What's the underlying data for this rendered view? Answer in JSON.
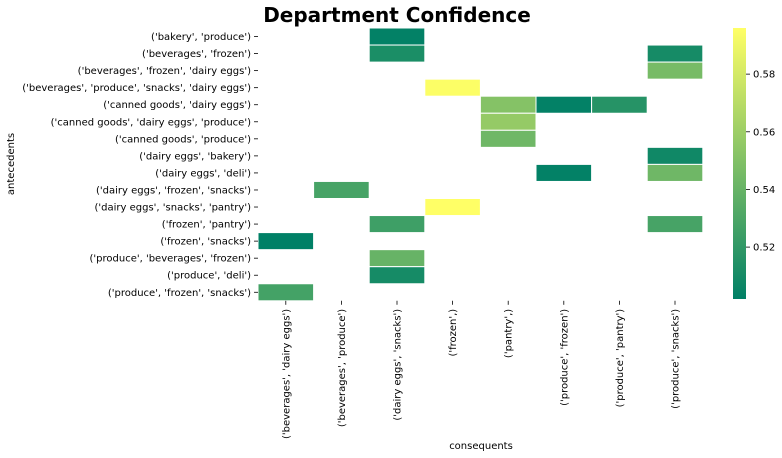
{
  "chart_data": {
    "type": "heatmap",
    "title": "Department Confidence",
    "xlabel": "consequents",
    "ylabel": "antecedents",
    "colormap": "summer",
    "colormap_stops": [
      "#008066",
      "#FFFF66"
    ],
    "vmin": 0.502,
    "vmax": 0.596,
    "colorbar_ticks": [
      0.52,
      0.54,
      0.56,
      0.58
    ],
    "colorbar_tick_labels": [
      "0.52",
      "0.54",
      "0.56",
      "0.58"
    ],
    "grid": false,
    "legend": "colorbar-right",
    "x_categories": [
      "('beverages', 'dairy eggs')",
      "('beverages', 'produce')",
      "('dairy eggs', 'snacks')",
      "('frozen',)",
      "('pantry',)",
      "('produce', 'frozen')",
      "('produce', 'pantry')",
      "('produce', 'snacks')"
    ],
    "y_categories": [
      "('bakery', 'produce')",
      "('beverages', 'frozen')",
      "('beverages', 'frozen', 'dairy eggs')",
      "('beverages', 'produce', 'snacks', 'dairy eggs')",
      "('canned goods', 'dairy eggs')",
      "('canned goods', 'dairy eggs', 'produce')",
      "('canned goods', 'produce')",
      "('dairy eggs', 'bakery')",
      "('dairy eggs', 'deli')",
      "('dairy eggs', 'frozen', 'snacks')",
      "('dairy eggs', 'snacks', 'pantry')",
      "('frozen', 'pantry')",
      "('frozen', 'snacks')",
      "('produce', 'beverages', 'frozen')",
      "('produce', 'deli')",
      "('produce', 'frozen', 'snacks')"
    ],
    "cells": [
      {
        "x": "('dairy eggs', 'snacks')",
        "y": "('bakery', 'produce')",
        "value": 0.503
      },
      {
        "x": "('dairy eggs', 'snacks')",
        "y": "('beverages', 'frozen')",
        "value": 0.512
      },
      {
        "x": "('produce', 'snacks')",
        "y": "('beverages', 'frozen')",
        "value": 0.51
      },
      {
        "x": "('produce', 'snacks')",
        "y": "('beverages', 'frozen', 'dairy eggs')",
        "value": 0.546
      },
      {
        "x": "('frozen',)",
        "y": "('beverages', 'produce', 'snacks', 'dairy eggs')",
        "value": 0.595
      },
      {
        "x": "('pantry',)",
        "y": "('canned goods', 'dairy eggs')",
        "value": 0.551
      },
      {
        "x": "('produce', 'frozen')",
        "y": "('canned goods', 'dairy eggs')",
        "value": 0.503
      },
      {
        "x": "('produce', 'pantry')",
        "y": "('canned goods', 'dairy eggs')",
        "value": 0.516
      },
      {
        "x": "('pantry',)",
        "y": "('canned goods', 'dairy eggs', 'produce')",
        "value": 0.557
      },
      {
        "x": "('pantry',)",
        "y": "('canned goods', 'produce')",
        "value": 0.543
      },
      {
        "x": "('produce', 'snacks')",
        "y": "('dairy eggs', 'bakery')",
        "value": 0.508
      },
      {
        "x": "('produce', 'frozen')",
        "y": "('dairy eggs', 'deli')",
        "value": 0.503
      },
      {
        "x": "('produce', 'snacks')",
        "y": "('dairy eggs', 'deli')",
        "value": 0.543
      },
      {
        "x": "('beverages', 'produce')",
        "y": "('dairy eggs', 'frozen', 'snacks')",
        "value": 0.528
      },
      {
        "x": "('frozen',)",
        "y": "('dairy eggs', 'snacks', 'pantry')",
        "value": 0.596
      },
      {
        "x": "('dairy eggs', 'snacks')",
        "y": "('frozen', 'pantry')",
        "value": 0.525
      },
      {
        "x": "('produce', 'snacks')",
        "y": "('frozen', 'pantry')",
        "value": 0.528
      },
      {
        "x": "('beverages', 'dairy eggs')",
        "y": "('frozen', 'snacks')",
        "value": 0.502
      },
      {
        "x": "('dairy eggs', 'snacks')",
        "y": "('produce', 'beverages', 'frozen')",
        "value": 0.54
      },
      {
        "x": "('dairy eggs', 'snacks')",
        "y": "('produce', 'deli')",
        "value": 0.51
      },
      {
        "x": "('beverages', 'dairy eggs')",
        "y": "('produce', 'frozen', 'snacks')",
        "value": 0.527
      }
    ]
  }
}
